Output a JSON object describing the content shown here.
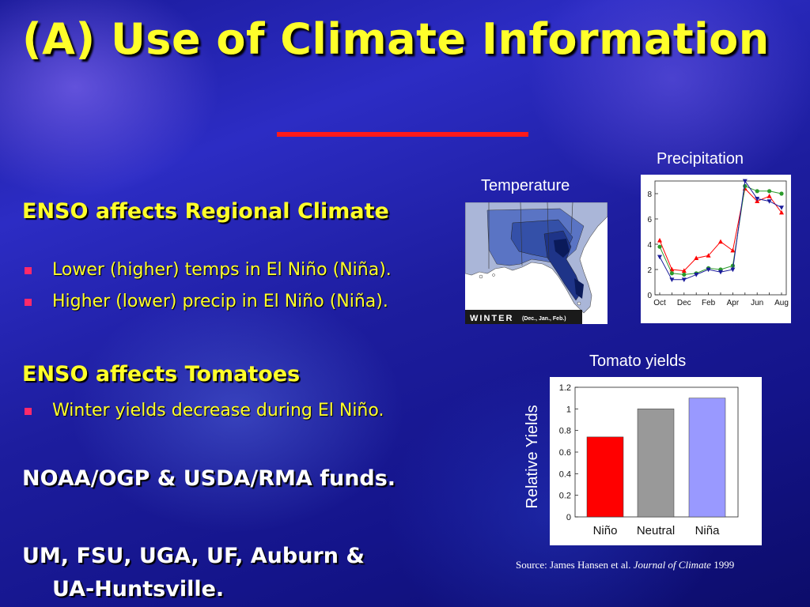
{
  "slide": {
    "title": "(A) Use of Climate Information"
  },
  "left": {
    "heading1": "ENSO affects Regional Climate",
    "bullets1": [
      "Lower (higher) temps in El Niño (Niña).",
      "Higher (lower) precip in El Niño (Niña)."
    ],
    "heading2": "ENSO affects Tomatoes",
    "bullets2": [
      "Winter yields decrease during El Niño."
    ],
    "heading3": "NOAA/OGP & USDA/RMA funds.",
    "heading4_line1": "UM, FSU, UGA, UF, Auburn &",
    "heading4_line2": "UA-Huntsville."
  },
  "temperature_panel": {
    "title": "Temperature",
    "map_label": "WINTER",
    "map_sublabel": "(Dec., Jan., Feb.)"
  },
  "precipitation_panel": {
    "title": "Precipitation"
  },
  "tomato_panel": {
    "title": "Tomato yields"
  },
  "source": {
    "prefix": "Source: James Hansen et al. ",
    "journal": "Journal of Climate",
    "year": " 1999"
  },
  "colors": {
    "title_yellow": "#ffff2a",
    "bullet_pink": "#ff2a6a",
    "divider_red": "#ff1a1a",
    "nino_red": "#ff0000",
    "neutral_gray": "#999999",
    "nina_lavender": "#9999ff"
  },
  "chart_data": [
    {
      "type": "line",
      "x": [
        "Oct",
        "Nov",
        "Dec",
        "Jan",
        "Feb",
        "Mar",
        "Apr",
        "May",
        "Jun",
        "Jul",
        "Aug"
      ],
      "xtick_labels": [
        "Oct",
        "Dec",
        "Feb",
        "Apr",
        "Jun",
        "Aug"
      ],
      "ylim": [
        0,
        9
      ],
      "yticks": [
        0,
        2,
        4,
        6,
        8
      ],
      "series": [
        {
          "color": "#ff0000",
          "marker": "triangle-up",
          "values": [
            4.3,
            2.0,
            1.9,
            2.9,
            3.1,
            4.2,
            3.5,
            8.4,
            7.4,
            7.8,
            6.5
          ]
        },
        {
          "color": "#2a9a2a",
          "marker": "circle",
          "values": [
            3.8,
            1.7,
            1.6,
            1.7,
            2.1,
            2.0,
            2.3,
            8.6,
            8.2,
            8.2,
            8.0
          ]
        },
        {
          "color": "#1a1a9a",
          "marker": "triangle-down",
          "values": [
            3.0,
            1.2,
            1.2,
            1.6,
            2.0,
            1.8,
            2.0,
            9.0,
            7.6,
            7.4,
            6.9
          ]
        }
      ]
    },
    {
      "type": "bar",
      "categories": [
        "Niño",
        "Neutral",
        "Niña"
      ],
      "values": [
        0.74,
        1.0,
        1.1
      ],
      "colors": [
        "#ff0000",
        "#999999",
        "#9999ff"
      ],
      "ylabel": "Relative Yields",
      "ylim": [
        0,
        1.2
      ],
      "yticks": [
        "0",
        "0.2",
        "0.4",
        "0.6",
        "0.8",
        "1",
        "1.2"
      ]
    }
  ]
}
